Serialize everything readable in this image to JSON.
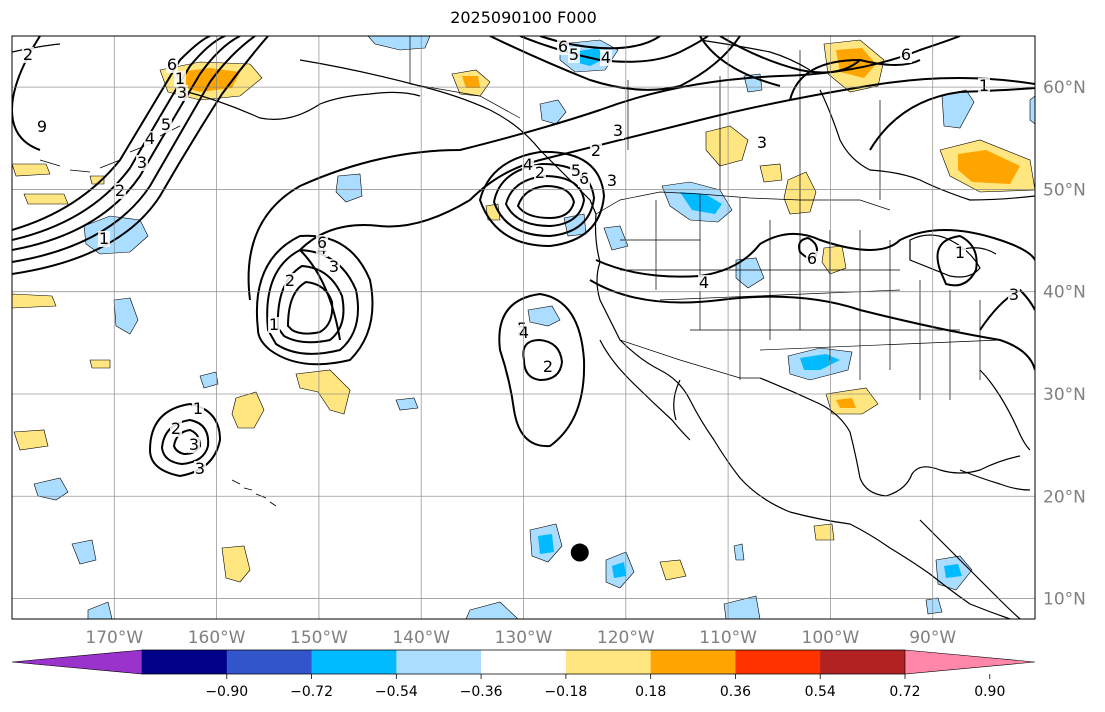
{
  "title": "2025090100 F000",
  "map": {
    "lon_range": [
      -180,
      -80
    ],
    "lat_range": [
      8,
      65
    ],
    "lon_ticks": [
      "170°W",
      "160°W",
      "150°W",
      "140°W",
      "130°W",
      "120°W",
      "110°W",
      "100°W",
      "90°W"
    ],
    "lat_ticks": [
      "60°N",
      "50°N",
      "40°N",
      "30°N",
      "20°N",
      "10°N"
    ],
    "gridlines": true,
    "marker": {
      "lon": -124.5,
      "lat": 14.5,
      "color": "#000000"
    },
    "contour_color": "#000000",
    "contour_labels": [
      "6",
      "5",
      "4",
      "1",
      "6",
      "9",
      "2",
      "3",
      "2",
      "1",
      "2",
      "3",
      "4",
      "5",
      "6",
      "1",
      "3",
      "2",
      "4",
      "3",
      "6",
      "5",
      "4",
      "3",
      "2",
      "1",
      "6",
      "5",
      "4",
      "2",
      "3",
      "1",
      "2",
      "3",
      "4",
      "6",
      "1",
      "3",
      "3"
    ]
  },
  "colorbar": {
    "colors": [
      "#9933cc",
      "#000088",
      "#3355cc",
      "#00bbff",
      "#aaddff",
      "#ffffff",
      "#ffe680",
      "#ffa500",
      "#ff3300",
      "#b22222",
      "#ff88aa"
    ],
    "tick_labels": [
      "−0.90",
      "−0.72",
      "−0.54",
      "−0.36",
      "−0.18",
      "0.18",
      "0.36",
      "0.54",
      "0.72",
      "0.90"
    ]
  }
}
